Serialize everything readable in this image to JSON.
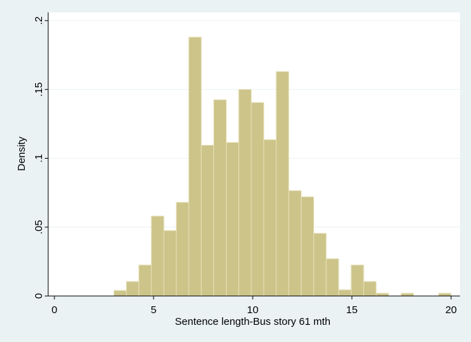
{
  "chart_data": {
    "type": "histogram",
    "xlabel": "Sentence length-Bus story 61 mth",
    "ylabel": "Density",
    "bins": [
      3,
      3.63,
      4.259,
      4.889,
      5.519,
      6.148,
      6.778,
      7.407,
      8.037,
      8.667,
      9.296,
      9.926,
      10.556,
      11.185,
      11.815,
      12.444,
      13.074,
      13.704,
      14.333,
      14.963,
      15.593,
      16.222,
      16.852,
      17.481,
      18.111,
      18.741,
      19.37,
      20
    ],
    "values": [
      0.004,
      0.0105,
      0.0225,
      0.058,
      0.0475,
      0.068,
      0.188,
      0.1095,
      0.1425,
      0.1115,
      0.15,
      0.1405,
      0.1135,
      0.163,
      0.0765,
      0.072,
      0.0455,
      0.027,
      0.0045,
      0.0225,
      0.0105,
      0.002,
      0,
      0.002,
      0,
      0,
      0.002
    ],
    "color": "#cdc48a",
    "xlim": [
      -0.3125,
      20.45
    ],
    "ylim": [
      0,
      0.206
    ],
    "xticks": [
      0,
      5,
      10,
      15,
      20
    ],
    "yticks": [
      0,
      {
        "value": 0.05,
        "label": ".05"
      },
      {
        "value": 0.1,
        "label": ".1"
      },
      {
        "value": 0.15,
        "label": ".15"
      },
      {
        "value": 0.2,
        "label": ".2"
      }
    ],
    "grid": true
  }
}
